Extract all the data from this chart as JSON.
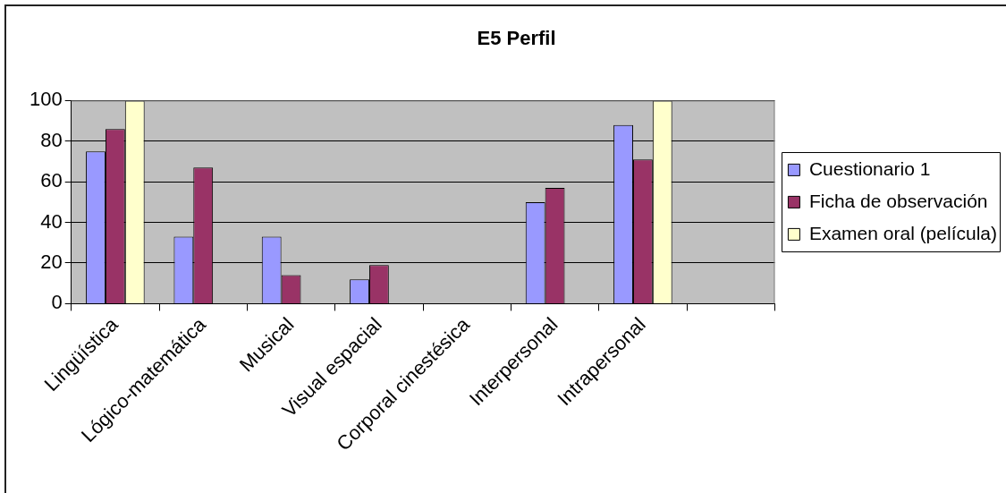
{
  "chart_data": {
    "type": "bar",
    "title": "E5 Perfil",
    "categories": [
      "Lingüística",
      "Lógico-matemática",
      "Musical",
      "Visual espacial",
      "Corporal cinestésica",
      "Interpersonal",
      "Intrapersonal",
      null
    ],
    "series": [
      {
        "name": "Cuestionario 1",
        "color": "#9999ff",
        "values": [
          75,
          33,
          33,
          12,
          null,
          50,
          88,
          null
        ]
      },
      {
        "name": "Ficha de observación",
        "color": "#993366",
        "values": [
          86,
          67,
          14,
          19,
          null,
          57,
          71,
          null
        ]
      },
      {
        "name": "Examen oral (película)",
        "color": "#ffffcc",
        "values": [
          100,
          null,
          null,
          null,
          null,
          null,
          100,
          null
        ]
      }
    ],
    "ylim": [
      0,
      100
    ],
    "yticks": [
      0,
      20,
      40,
      60,
      80,
      100
    ],
    "grid": "y",
    "legend": "right"
  }
}
